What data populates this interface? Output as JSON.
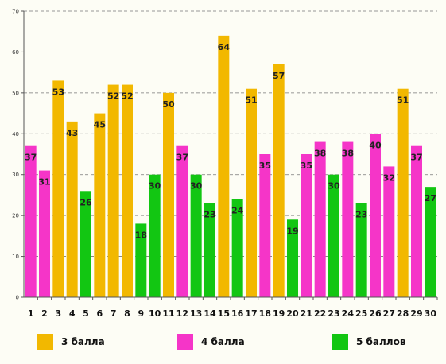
{
  "chart_data": {
    "type": "bar",
    "categories": [
      "1",
      "2",
      "3",
      "4",
      "5",
      "6",
      "7",
      "8",
      "9",
      "10",
      "11",
      "12",
      "13",
      "14",
      "15",
      "16",
      "17",
      "18",
      "19",
      "20",
      "21",
      "22",
      "23",
      "24",
      "25",
      "26",
      "27",
      "28",
      "29",
      "30"
    ],
    "values": [
      37,
      31,
      53,
      43,
      26,
      45,
      52,
      52,
      18,
      30,
      50,
      37,
      30,
      23,
      64,
      24,
      51,
      35,
      57,
      19,
      35,
      38,
      30,
      38,
      23,
      40,
      32,
      51,
      37,
      27
    ],
    "bar_series": [
      1,
      1,
      0,
      0,
      2,
      0,
      0,
      0,
      2,
      2,
      0,
      1,
      2,
      2,
      0,
      2,
      0,
      1,
      0,
      2,
      1,
      1,
      2,
      1,
      2,
      1,
      1,
      0,
      1,
      2
    ],
    "series": [
      {
        "name": "3 балла",
        "color": "#f2b800"
      },
      {
        "name": "4 балла",
        "color": "#f535c8"
      },
      {
        "name": "5 баллов",
        "color": "#12c612"
      }
    ],
    "ylim": [
      0,
      70
    ],
    "yticks": [
      0,
      10,
      20,
      30,
      40,
      50,
      60,
      70
    ],
    "grid": true,
    "legend_position": "bottom"
  }
}
